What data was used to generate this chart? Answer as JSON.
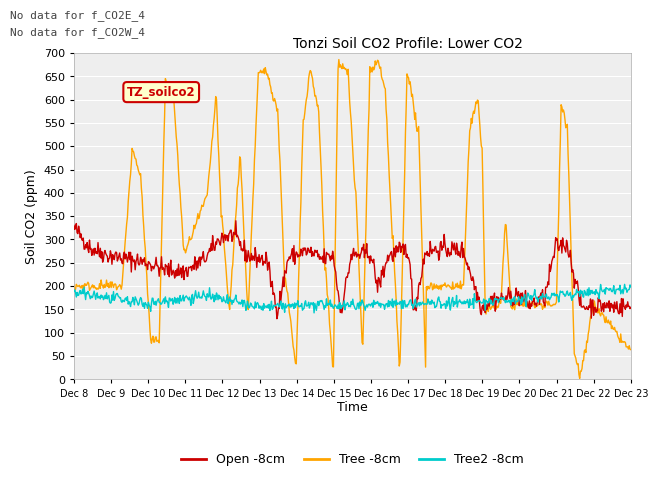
{
  "title": "Tonzi Soil CO2 Profile: Lower CO2",
  "ylabel": "Soil CO2 (ppm)",
  "xlabel": "Time",
  "ylim": [
    0,
    700
  ],
  "yticks": [
    0,
    50,
    100,
    150,
    200,
    250,
    300,
    350,
    400,
    450,
    500,
    550,
    600,
    650,
    700
  ],
  "annotation1": "No data for f_CO2E_4",
  "annotation2": "No data for f_CO2W_4",
  "legend_label": "TZ_soilco2",
  "line_labels": [
    "Open -8cm",
    "Tree -8cm",
    "Tree2 -8cm"
  ],
  "line_colors": [
    "#cc0000",
    "#ffa500",
    "#00cccc"
  ],
  "background_color": "#ffffff",
  "plot_bg_color": "#eeeeee",
  "n_points": 720,
  "x_start": 8,
  "x_end": 23,
  "xtick_labels": [
    "Dec 8",
    "Dec 9",
    "Dec 10",
    "Dec 11",
    "Dec 12",
    "Dec 13",
    "Dec 14",
    "Dec 15",
    "Dec 16",
    "Dec 17",
    "Dec 18",
    "Dec 19",
    "Dec 20",
    "Dec 21",
    "Dec 22",
    "Dec 23"
  ],
  "xtick_positions": [
    8,
    9,
    10,
    11,
    12,
    13,
    14,
    15,
    16,
    17,
    18,
    19,
    20,
    21,
    22,
    23
  ]
}
